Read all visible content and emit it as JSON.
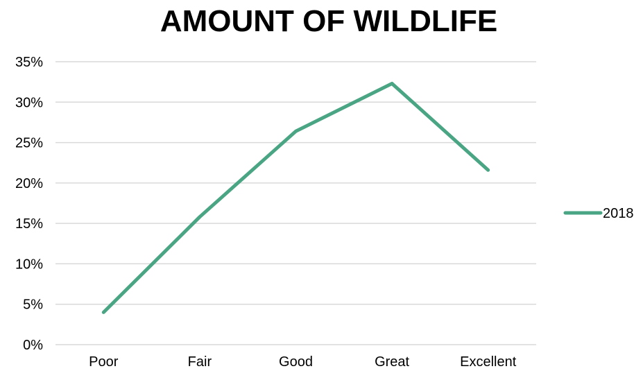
{
  "chart_data": {
    "type": "line",
    "title": "AMOUNT OF WILDLIFE",
    "xlabel": "",
    "ylabel": "",
    "categories": [
      "Poor",
      "Fair",
      "Good",
      "Great",
      "Excellent"
    ],
    "series": [
      {
        "name": "2018",
        "color": "#4aa584",
        "values": [
          4,
          15.8,
          26.4,
          32.3,
          21.6
        ]
      }
    ],
    "ylim": [
      0,
      35
    ],
    "yticks": [
      0,
      5,
      10,
      15,
      20,
      25,
      30,
      35
    ],
    "ytick_format": "percent",
    "grid": true,
    "legend_position": "right"
  }
}
